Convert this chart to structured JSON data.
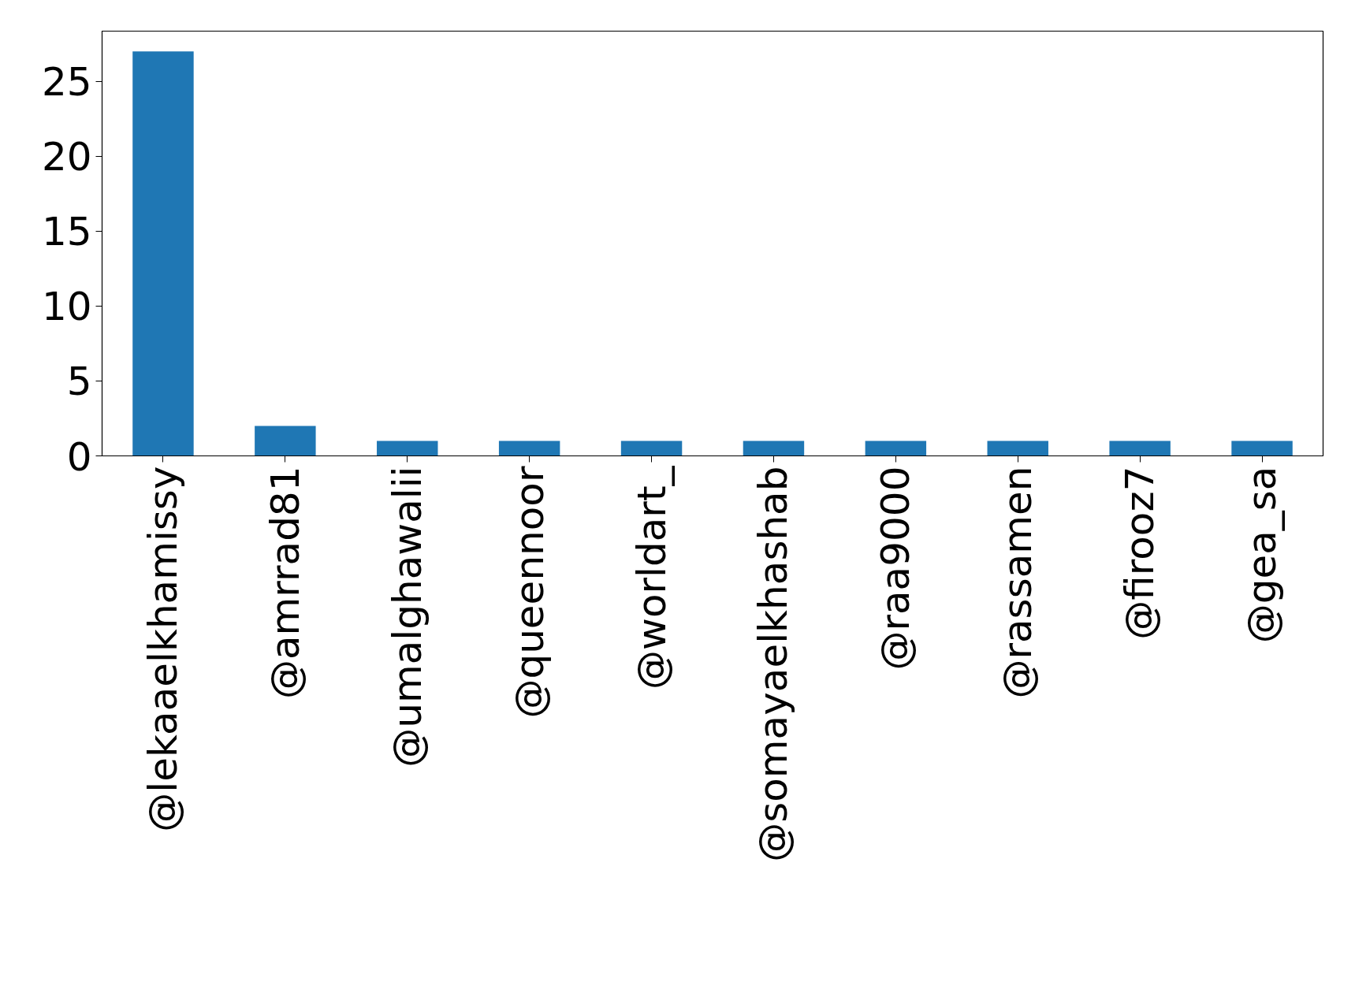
{
  "chart_data": {
    "type": "bar",
    "categories": [
      "@lekaaelkhamissy",
      "@amrrad81",
      "@umalghawalii",
      "@queennoor",
      "@worldart_",
      "@somayaelkhashab",
      "@raa9000",
      "@rassamen",
      "@firooz7",
      "@gea_sa"
    ],
    "values": [
      27,
      2,
      1,
      1,
      1,
      1,
      1,
      1,
      1,
      1
    ],
    "color": "#1f77b4",
    "ylim": [
      0,
      28.35
    ],
    "yticks": [
      0,
      5,
      10,
      15,
      20,
      25
    ],
    "grid": false
  }
}
